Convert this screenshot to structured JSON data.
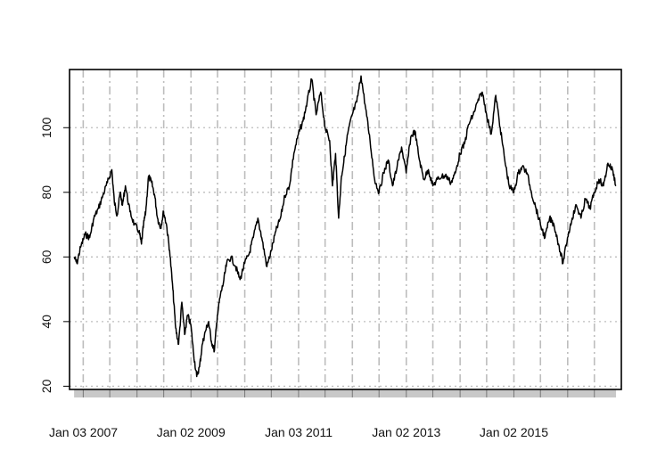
{
  "chart_data": {
    "type": "line",
    "title": "",
    "xlabel": "",
    "ylabel": "",
    "x_tick_labels": [
      "Jan 03 2007",
      "Jan 02 2009",
      "Jan 03 2011",
      "Jan 02 2013",
      "Jan 02 2015"
    ],
    "y_ticks": [
      20,
      40,
      60,
      80,
      100
    ],
    "ylim": [
      19,
      118
    ],
    "xlim": [
      "2006-10-01",
      "2016-12-31"
    ],
    "grid": true,
    "legend": "none",
    "series": [
      {
        "x": [
          "2006-11-01",
          "2006-11-20",
          "2006-12-15",
          "2007-01-15",
          "2007-02-15",
          "2007-03-15",
          "2007-04-15",
          "2007-05-15",
          "2007-06-15",
          "2007-07-15",
          "2007-08-01",
          "2007-08-20",
          "2007-09-10",
          "2007-09-25",
          "2007-10-15",
          "2007-11-15",
          "2007-12-15",
          "2008-01-15",
          "2008-02-01",
          "2008-02-15",
          "2008-03-01",
          "2008-03-20",
          "2008-04-10",
          "2008-05-01",
          "2008-05-20",
          "2008-06-10",
          "2008-06-30",
          "2008-07-20",
          "2008-08-10",
          "2008-09-01",
          "2008-09-20",
          "2008-10-10",
          "2008-11-01",
          "2008-11-20",
          "2008-12-10",
          "2009-01-01",
          "2009-01-20",
          "2009-02-10",
          "2009-03-01",
          "2009-03-20",
          "2009-04-10",
          "2009-05-01",
          "2009-05-20",
          "2009-06-10",
          "2009-06-30",
          "2009-07-20",
          "2009-08-10",
          "2009-09-01",
          "2009-10-01",
          "2009-11-01",
          "2009-12-01",
          "2010-01-01",
          "2010-02-01",
          "2010-03-01",
          "2010-04-01",
          "2010-05-01",
          "2010-06-01",
          "2010-07-01",
          "2010-08-01",
          "2010-09-01",
          "2010-10-01",
          "2010-11-01",
          "2010-12-01",
          "2011-01-01",
          "2011-02-01",
          "2011-03-01",
          "2011-04-01",
          "2011-05-01",
          "2011-06-01",
          "2011-07-01",
          "2011-08-01",
          "2011-08-20",
          "2011-09-10",
          "2011-10-01",
          "2011-10-20",
          "2011-11-10",
          "2011-12-01",
          "2012-01-01",
          "2012-02-01",
          "2012-03-01",
          "2012-04-01",
          "2012-05-01",
          "2012-06-01",
          "2012-07-01",
          "2012-08-01",
          "2012-09-01",
          "2012-10-01",
          "2012-11-01",
          "2012-12-01",
          "2013-01-01",
          "2013-02-01",
          "2013-03-01",
          "2013-04-01",
          "2013-05-01",
          "2013-06-01",
          "2013-07-01",
          "2013-08-01",
          "2013-09-01",
          "2013-10-01",
          "2013-11-01",
          "2013-12-01",
          "2014-01-01",
          "2014-02-01",
          "2014-03-01",
          "2014-04-01",
          "2014-05-01",
          "2014-06-01",
          "2014-07-01",
          "2014-08-01",
          "2014-09-01",
          "2014-10-01",
          "2014-11-01",
          "2014-12-01",
          "2015-01-01",
          "2015-02-01",
          "2015-03-01",
          "2015-04-01",
          "2015-05-01",
          "2015-06-01",
          "2015-07-01",
          "2015-08-01",
          "2015-09-01",
          "2015-10-01",
          "2015-11-01",
          "2015-12-01",
          "2016-01-01",
          "2016-02-01",
          "2016-03-01",
          "2016-04-01",
          "2016-05-01",
          "2016-06-01",
          "2016-07-01",
          "2016-08-01",
          "2016-09-01",
          "2016-10-01",
          "2016-11-01",
          "2016-11-25"
        ],
        "values": [
          60,
          58,
          63,
          67,
          66,
          72,
          75,
          79,
          83,
          87,
          77,
          73,
          80,
          76,
          82,
          74,
          70,
          68,
          64,
          70,
          74,
          85,
          83,
          79,
          72,
          69,
          74,
          70,
          62,
          50,
          38,
          33,
          46,
          36,
          42,
          39,
          30,
          23,
          26,
          33,
          37,
          40,
          34,
          31,
          42,
          48,
          52,
          58,
          60,
          57,
          53,
          58,
          61,
          66,
          72,
          65,
          57,
          62,
          68,
          72,
          79,
          82,
          92,
          98,
          102,
          108,
          115,
          104,
          111,
          100,
          96,
          82,
          92,
          72,
          85,
          91,
          98,
          104,
          108,
          116,
          106,
          96,
          84,
          80,
          86,
          90,
          82,
          88,
          94,
          86,
          97,
          99,
          90,
          84,
          87,
          82,
          84,
          85,
          85,
          83,
          86,
          92,
          95,
          101,
          104,
          108,
          111,
          104,
          98,
          110,
          100,
          90,
          82,
          80,
          86,
          88,
          86,
          80,
          75,
          70,
          66,
          72,
          70,
          64,
          58,
          66,
          72,
          76,
          72,
          78,
          75,
          80,
          84,
          82,
          89,
          87,
          82
        ]
      }
    ]
  }
}
